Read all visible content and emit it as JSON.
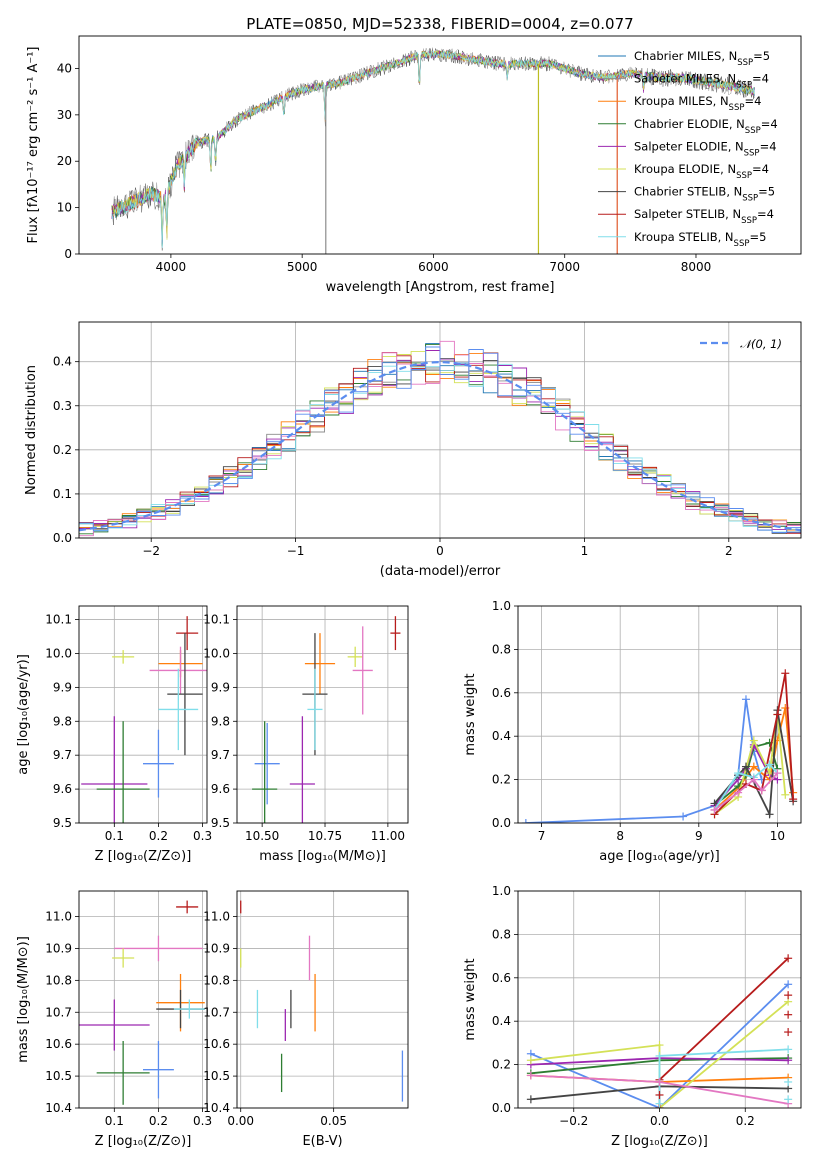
{
  "chart_data": [
    {
      "id": "spectrum",
      "type": "line",
      "title": "PLATE=0850, MJD=52338, FIBERID=0004, z=0.077",
      "xlabel": "wavelength [Angstrom, rest frame]",
      "ylabel": "Flux [fλ10⁻¹⁷ erg cm⁻² s⁻¹ A⁻¹]",
      "xlim": [
        3300,
        8800
      ],
      "ylim": [
        0,
        47
      ],
      "xticks": [
        4000,
        5000,
        6000,
        7000,
        8000
      ],
      "yticks": [
        0,
        10,
        20,
        30,
        40
      ],
      "grid": false,
      "legend_position": "top-right",
      "continuum": {
        "x": [
          3550,
          3700,
          3850,
          3950,
          4050,
          4200,
          4350,
          4500,
          4650,
          4800,
          4950,
          5100,
          5300,
          5500,
          5700,
          5900,
          6100,
          6300,
          6500,
          6700,
          6900,
          7100,
          7300,
          7500,
          7700,
          7900,
          8100,
          8300,
          8450
        ],
        "y": [
          9,
          11,
          13,
          12,
          19,
          24,
          25,
          29,
          31,
          33,
          35,
          36,
          37,
          39,
          41,
          43,
          43,
          42,
          41,
          41,
          41,
          39,
          38,
          39,
          38,
          38,
          37,
          36,
          35
        ]
      },
      "absorption_lines": [
        {
          "x": 3934,
          "depth": 10
        },
        {
          "x": 3969,
          "depth": 9
        },
        {
          "x": 4102,
          "depth": 6
        },
        {
          "x": 4304,
          "depth": 7
        },
        {
          "x": 4340,
          "depth": 5
        },
        {
          "x": 4861,
          "depth": 4
        },
        {
          "x": 5175,
          "depth": 8
        },
        {
          "x": 5893,
          "depth": 7
        },
        {
          "x": 6563,
          "depth": 3
        },
        {
          "x": 7600,
          "depth": 3
        }
      ],
      "spikes": [
        {
          "x": 5180,
          "color": "#8c8c8c"
        },
        {
          "x": 6800,
          "color": "#bcbd22"
        },
        {
          "x": 7400,
          "color": "#e05a2b"
        }
      ],
      "series": [
        {
          "name": "Chabrier MILES, N",
          "sub": "SSP",
          "suffix": "=5",
          "color": "#1f77b4"
        },
        {
          "name": "Salpeter MILES, N",
          "sub": "SSP",
          "suffix": "=4",
          "color": "#8c8c8c"
        },
        {
          "name": "Kroupa MILES, N",
          "sub": "SSP",
          "suffix": "=4",
          "color": "#ff7f0e"
        },
        {
          "name": "Chabrier ELODIE, N",
          "sub": "SSP",
          "suffix": "=4",
          "color": "#2e7d32"
        },
        {
          "name": "Salpeter ELODIE, N",
          "sub": "SSP",
          "suffix": "=4",
          "color": "#9c27b0"
        },
        {
          "name": "Kroupa ELODIE, N",
          "sub": "SSP",
          "suffix": "=4",
          "color": "#d4e157"
        },
        {
          "name": "Chabrier STELIB, N",
          "sub": "SSP",
          "suffix": "=5",
          "color": "#444444"
        },
        {
          "name": "Salpeter STELIB, N",
          "sub": "SSP",
          "suffix": "=4",
          "color": "#b71c1c"
        },
        {
          "name": "Kroupa STELIB, N",
          "sub": "SSP",
          "suffix": "=5",
          "color": "#80deea"
        }
      ]
    },
    {
      "id": "residuals",
      "type": "line",
      "xlabel": "(data-model)/error",
      "ylabel": "Normed distribution",
      "xlim": [
        -2.5,
        2.5
      ],
      "ylim": [
        0,
        0.49
      ],
      "xticks": [
        -2,
        -1,
        0,
        1,
        2
      ],
      "xtick_labels": [
        "−2",
        "−1",
        "0",
        "1",
        "2"
      ],
      "yticks": [
        0.0,
        0.1,
        0.2,
        0.3,
        0.4
      ],
      "ytick_labels": [
        "0.0",
        "0.1",
        "0.2",
        "0.3",
        "0.4"
      ],
      "grid": true,
      "legend_position": "top-right",
      "bin_width": 0.1,
      "reference": {
        "name": "𝒩(0, 1)",
        "mean": 0,
        "sigma": 1,
        "color": "#5b8def"
      },
      "hist_colors": [
        "#1f77b4",
        "#8c8c8c",
        "#ff7f0e",
        "#2e7d32",
        "#9c27b0",
        "#d4e157",
        "#444444",
        "#b71c1c",
        "#80deea",
        "#e377c2",
        "#5b8def"
      ]
    },
    {
      "id": "age_vs_Z",
      "type": "scatter",
      "xlabel": "Z [log₁₀(Z/Z⊙)]",
      "ylabel": "age  [log₁₀(age/yr)]",
      "xlim": [
        0.02,
        0.31
      ],
      "ylim": [
        9.5,
        10.14
      ],
      "xticks": [
        0.1,
        0.2,
        0.3
      ],
      "xtick_labels": [
        "0.1",
        "0.2",
        "0.3"
      ],
      "yticks": [
        9.5,
        9.6,
        9.7,
        9.8,
        9.9,
        10.0,
        10.1
      ],
      "ytick_labels": [
        "9.5",
        "9.6",
        "9.7",
        "9.8",
        "9.9",
        "10.0",
        "10.1"
      ],
      "grid": true,
      "points": [
        {
          "x": 0.265,
          "y": 10.06,
          "dx": 0.025,
          "dy": 0.05,
          "color": "#b71c1c"
        },
        {
          "x": 0.12,
          "y": 9.99,
          "dx": 0.025,
          "dy": 0.02,
          "color": "#d4e157"
        },
        {
          "x": 0.25,
          "y": 9.97,
          "dx": 0.05,
          "dy": 0.04,
          "color": "#ff7f0e"
        },
        {
          "x": 0.25,
          "y": 9.95,
          "dx": 0.07,
          "dy": 0.07,
          "color": "#e377c2"
        },
        {
          "x": 0.26,
          "y": 9.88,
          "dx": 0.04,
          "dy": 0.18,
          "color": "#444444"
        },
        {
          "x": 0.245,
          "y": 9.835,
          "dx": 0.045,
          "dy": 0.12,
          "color": "#80deea"
        },
        {
          "x": 0.2,
          "y": 9.675,
          "dx": 0.035,
          "dy": 0.1,
          "color": "#5b8def"
        },
        {
          "x": 0.1,
          "y": 9.615,
          "dx": 0.075,
          "dy": 0.2,
          "color": "#9c27b0"
        },
        {
          "x": 0.12,
          "y": 9.6,
          "dx": 0.06,
          "dy": 0.2,
          "color": "#2e7d32"
        }
      ]
    },
    {
      "id": "age_vs_mass",
      "type": "scatter",
      "xlabel": "mass [log₁₀(M/M⊙)]",
      "xlim": [
        10.4,
        11.08
      ],
      "ylim": [
        9.5,
        10.14
      ],
      "xticks": [
        10.5,
        10.75,
        11.0
      ],
      "xtick_labels": [
        "10.50",
        "10.75",
        "11.00"
      ],
      "yticks": [
        9.5,
        9.6,
        9.7,
        9.8,
        9.9,
        10.0,
        10.1
      ],
      "ytick_labels": [
        "9.5",
        "9.6",
        "9.7",
        "9.8",
        "9.9",
        "10.0",
        "10.1"
      ],
      "grid": true,
      "points": [
        {
          "x": 11.03,
          "y": 10.06,
          "dx": 0.02,
          "dy": 0.05,
          "color": "#b71c1c"
        },
        {
          "x": 10.87,
          "y": 9.99,
          "dx": 0.03,
          "dy": 0.03,
          "color": "#d4e157"
        },
        {
          "x": 10.73,
          "y": 9.97,
          "dx": 0.06,
          "dy": 0.09,
          "color": "#ff7f0e"
        },
        {
          "x": 10.9,
          "y": 9.95,
          "dx": 0.04,
          "dy": 0.13,
          "color": "#e377c2"
        },
        {
          "x": 10.71,
          "y": 9.88,
          "dx": 0.05,
          "dy": 0.18,
          "color": "#444444"
        },
        {
          "x": 10.71,
          "y": 9.835,
          "dx": 0.03,
          "dy": 0.12,
          "color": "#80deea"
        },
        {
          "x": 10.52,
          "y": 9.675,
          "dx": 0.05,
          "dy": 0.12,
          "color": "#5b8def"
        },
        {
          "x": 10.66,
          "y": 9.615,
          "dx": 0.05,
          "dy": 0.2,
          "color": "#9c27b0"
        },
        {
          "x": 10.51,
          "y": 9.6,
          "dx": 0.05,
          "dy": 0.2,
          "color": "#2e7d32"
        }
      ]
    },
    {
      "id": "mass_weight_vs_age",
      "type": "line",
      "xlabel": "age  [log₁₀(age/yr)]",
      "ylabel": "mass weight",
      "xlim": [
        6.7,
        10.3
      ],
      "ylim": [
        0,
        1
      ],
      "xticks": [
        7,
        8,
        9,
        10
      ],
      "xtick_labels": [
        "7",
        "8",
        "9",
        "10"
      ],
      "yticks": [
        0.0,
        0.2,
        0.4,
        0.6,
        0.8,
        1.0
      ],
      "ytick_labels": [
        "0.0",
        "0.2",
        "0.4",
        "0.6",
        "0.8",
        "1.0"
      ],
      "grid": true,
      "series": [
        {
          "color": "#5b8def",
          "x": [
            6.8,
            8.8,
            9.2,
            9.5,
            9.6,
            9.7,
            9.8
          ],
          "y": [
            0.0,
            0.03,
            0.08,
            0.22,
            0.57,
            0.33,
            0.2
          ]
        },
        {
          "color": "#ff7f0e",
          "x": [
            9.2,
            9.5,
            9.7,
            9.9,
            10.0,
            10.1,
            10.2
          ],
          "y": [
            0.06,
            0.16,
            0.26,
            0.2,
            0.38,
            0.53,
            0.14
          ]
        },
        {
          "color": "#2e7d32",
          "x": [
            9.2,
            9.5,
            9.6,
            9.7,
            9.9,
            10.0
          ],
          "y": [
            0.08,
            0.17,
            0.22,
            0.35,
            0.37,
            0.25
          ]
        },
        {
          "color": "#9c27b0",
          "x": [
            9.2,
            9.5,
            9.6,
            9.7,
            9.9,
            10.0
          ],
          "y": [
            0.08,
            0.2,
            0.25,
            0.36,
            0.22,
            0.2
          ]
        },
        {
          "color": "#d4e157",
          "x": [
            9.2,
            9.5,
            9.7,
            9.9,
            10.0,
            10.1
          ],
          "y": [
            0.04,
            0.12,
            0.38,
            0.23,
            0.5,
            0.13
          ]
        },
        {
          "color": "#444444",
          "x": [
            9.2,
            9.5,
            9.6,
            9.9,
            10.0,
            10.2
          ],
          "y": [
            0.09,
            0.22,
            0.26,
            0.04,
            0.52,
            0.1
          ]
        },
        {
          "color": "#b71c1c",
          "x": [
            9.2,
            9.6,
            9.8,
            10.0,
            10.1,
            10.2
          ],
          "y": [
            0.04,
            0.18,
            0.15,
            0.5,
            0.69,
            0.11
          ]
        },
        {
          "color": "#80deea",
          "x": [
            9.2,
            9.5,
            9.7,
            9.9,
            10.0
          ],
          "y": [
            0.06,
            0.23,
            0.21,
            0.27,
            0.23
          ]
        },
        {
          "color": "#e377c2",
          "x": [
            9.2,
            9.5,
            9.7,
            9.8,
            10.0
          ],
          "y": [
            0.06,
            0.14,
            0.2,
            0.15,
            0.23
          ]
        }
      ]
    },
    {
      "id": "mass_vs_Z",
      "type": "scatter",
      "xlabel": "Z [log₁₀(Z/Z⊙)]",
      "ylabel": "mass [log₁₀(M/M⊙)]",
      "xlim": [
        0.02,
        0.31
      ],
      "ylim": [
        10.4,
        11.08
      ],
      "xticks": [
        0.1,
        0.2,
        0.3
      ],
      "xtick_labels": [
        "0.1",
        "0.2",
        "0.3"
      ],
      "yticks": [
        10.4,
        10.5,
        10.6,
        10.7,
        10.8,
        10.9,
        11.0
      ],
      "ytick_labels": [
        "10.4",
        "10.5",
        "10.6",
        "10.7",
        "10.8",
        "10.9",
        "11.0"
      ],
      "grid": true,
      "points": [
        {
          "x": 0.265,
          "y": 11.03,
          "dx": 0.025,
          "dy": 0.02,
          "color": "#b71c1c"
        },
        {
          "x": 0.2,
          "y": 10.9,
          "dx": 0.1,
          "dy": 0.04,
          "color": "#e377c2"
        },
        {
          "x": 0.12,
          "y": 10.87,
          "dx": 0.025,
          "dy": 0.03,
          "color": "#d4e157"
        },
        {
          "x": 0.25,
          "y": 10.73,
          "dx": 0.055,
          "dy": 0.09,
          "color": "#ff7f0e"
        },
        {
          "x": 0.25,
          "y": 10.71,
          "dx": 0.055,
          "dy": 0.06,
          "color": "#444444"
        },
        {
          "x": 0.27,
          "y": 10.71,
          "dx": 0.035,
          "dy": 0.03,
          "color": "#80deea"
        },
        {
          "x": 0.1,
          "y": 10.66,
          "dx": 0.08,
          "dy": 0.08,
          "color": "#9c27b0"
        },
        {
          "x": 0.2,
          "y": 10.52,
          "dx": 0.035,
          "dy": 0.09,
          "color": "#5b8def"
        },
        {
          "x": 0.12,
          "y": 10.51,
          "dx": 0.06,
          "dy": 0.1,
          "color": "#2e7d32"
        }
      ]
    },
    {
      "id": "mass_vs_ebv",
      "type": "scatter",
      "xlabel": "E(B-V)",
      "xlim": [
        -0.002,
        0.09
      ],
      "ylim": [
        10.4,
        11.08
      ],
      "xticks": [
        0.0,
        0.05
      ],
      "xtick_labels": [
        "0.00",
        "0.05"
      ],
      "yticks": [
        10.4,
        10.5,
        10.6,
        10.7,
        10.8,
        10.9,
        11.0
      ],
      "ytick_labels": [
        "10.4",
        "10.5",
        "10.6",
        "10.7",
        "10.8",
        "10.9",
        "11.0"
      ],
      "grid": true,
      "points": [
        {
          "x": 0.0,
          "y": 11.03,
          "dx": 0,
          "dy": 0.02,
          "color": "#b71c1c"
        },
        {
          "x": 0.0,
          "y": 10.87,
          "dx": 0,
          "dy": 0.03,
          "color": "#d4e157"
        },
        {
          "x": 0.037,
          "y": 10.87,
          "dx": 0,
          "dy": 0.07,
          "color": "#e377c2"
        },
        {
          "x": 0.04,
          "y": 10.73,
          "dx": 0,
          "dy": 0.09,
          "color": "#ff7f0e"
        },
        {
          "x": 0.027,
          "y": 10.71,
          "dx": 0,
          "dy": 0.06,
          "color": "#444444"
        },
        {
          "x": 0.009,
          "y": 10.71,
          "dx": 0,
          "dy": 0.06,
          "color": "#80deea"
        },
        {
          "x": 0.024,
          "y": 10.66,
          "dx": 0,
          "dy": 0.05,
          "color": "#9c27b0"
        },
        {
          "x": 0.022,
          "y": 10.51,
          "dx": 0,
          "dy": 0.06,
          "color": "#2e7d32"
        },
        {
          "x": 0.087,
          "y": 10.5,
          "dx": 0,
          "dy": 0.08,
          "color": "#5b8def"
        }
      ]
    },
    {
      "id": "mass_weight_vs_Z",
      "type": "line",
      "xlabel": "Z [log₁₀(Z/Z⊙)]",
      "ylabel": "mass weight",
      "xlim": [
        -0.33,
        0.33
      ],
      "ylim": [
        0,
        1
      ],
      "xticks": [
        -0.2,
        0.0,
        0.2
      ],
      "xtick_labels": [
        "−0.2",
        "0.0",
        "0.2"
      ],
      "yticks": [
        0.0,
        0.2,
        0.4,
        0.6,
        0.8,
        1.0
      ],
      "ytick_labels": [
        "0.0",
        "0.2",
        "0.4",
        "0.6",
        "0.8",
        "1.0"
      ],
      "grid": true,
      "series": [
        {
          "color": "#5b8def",
          "x": [
            -0.3,
            0.0,
            0.3
          ],
          "y": [
            0.25,
            0.0,
            0.57
          ]
        },
        {
          "color": "#ff7f0e",
          "x": [
            -0.3,
            0.0,
            0.3
          ],
          "y": [
            0.15,
            0.12,
            0.14
          ]
        },
        {
          "color": "#2e7d32",
          "x": [
            -0.3,
            0.0,
            0.3
          ],
          "y": [
            0.16,
            0.22,
            0.23
          ]
        },
        {
          "color": "#9c27b0",
          "x": [
            -0.3,
            0.0,
            0.3
          ],
          "y": [
            0.2,
            0.23,
            0.22
          ]
        },
        {
          "color": "#d4e157",
          "x": [
            -0.3,
            0.0,
            0.0,
            0.3
          ],
          "y": [
            0.22,
            0.29,
            0.0,
            0.49
          ]
        },
        {
          "color": "#444444",
          "x": [
            -0.3,
            0.0,
            0.3
          ],
          "y": [
            0.04,
            0.1,
            0.09
          ]
        },
        {
          "color": "#b71c1c",
          "x": [
            0.0,
            0.0,
            0.3
          ],
          "y": [
            0.0,
            0.13,
            0.69
          ]
        },
        {
          "color": "#80deea",
          "x": [
            0.0,
            0.0,
            0.3
          ],
          "y": [
            0.02,
            0.24,
            0.27
          ]
        },
        {
          "color": "#e377c2",
          "x": [
            -0.3,
            0.0,
            0.3
          ],
          "y": [
            0.15,
            0.12,
            0.02
          ]
        }
      ],
      "extra_markers": [
        {
          "x": 0.3,
          "y": 0.35,
          "color": "#b71c1c"
        },
        {
          "x": 0.3,
          "y": 0.43,
          "color": "#b71c1c"
        },
        {
          "x": 0.3,
          "y": 0.52,
          "color": "#b71c1c"
        },
        {
          "x": 0.3,
          "y": 0.12,
          "color": "#80deea"
        },
        {
          "x": 0.3,
          "y": 0.04,
          "color": "#80deea"
        },
        {
          "x": 0.0,
          "y": 0.06,
          "color": "#b71c1c"
        }
      ]
    }
  ]
}
